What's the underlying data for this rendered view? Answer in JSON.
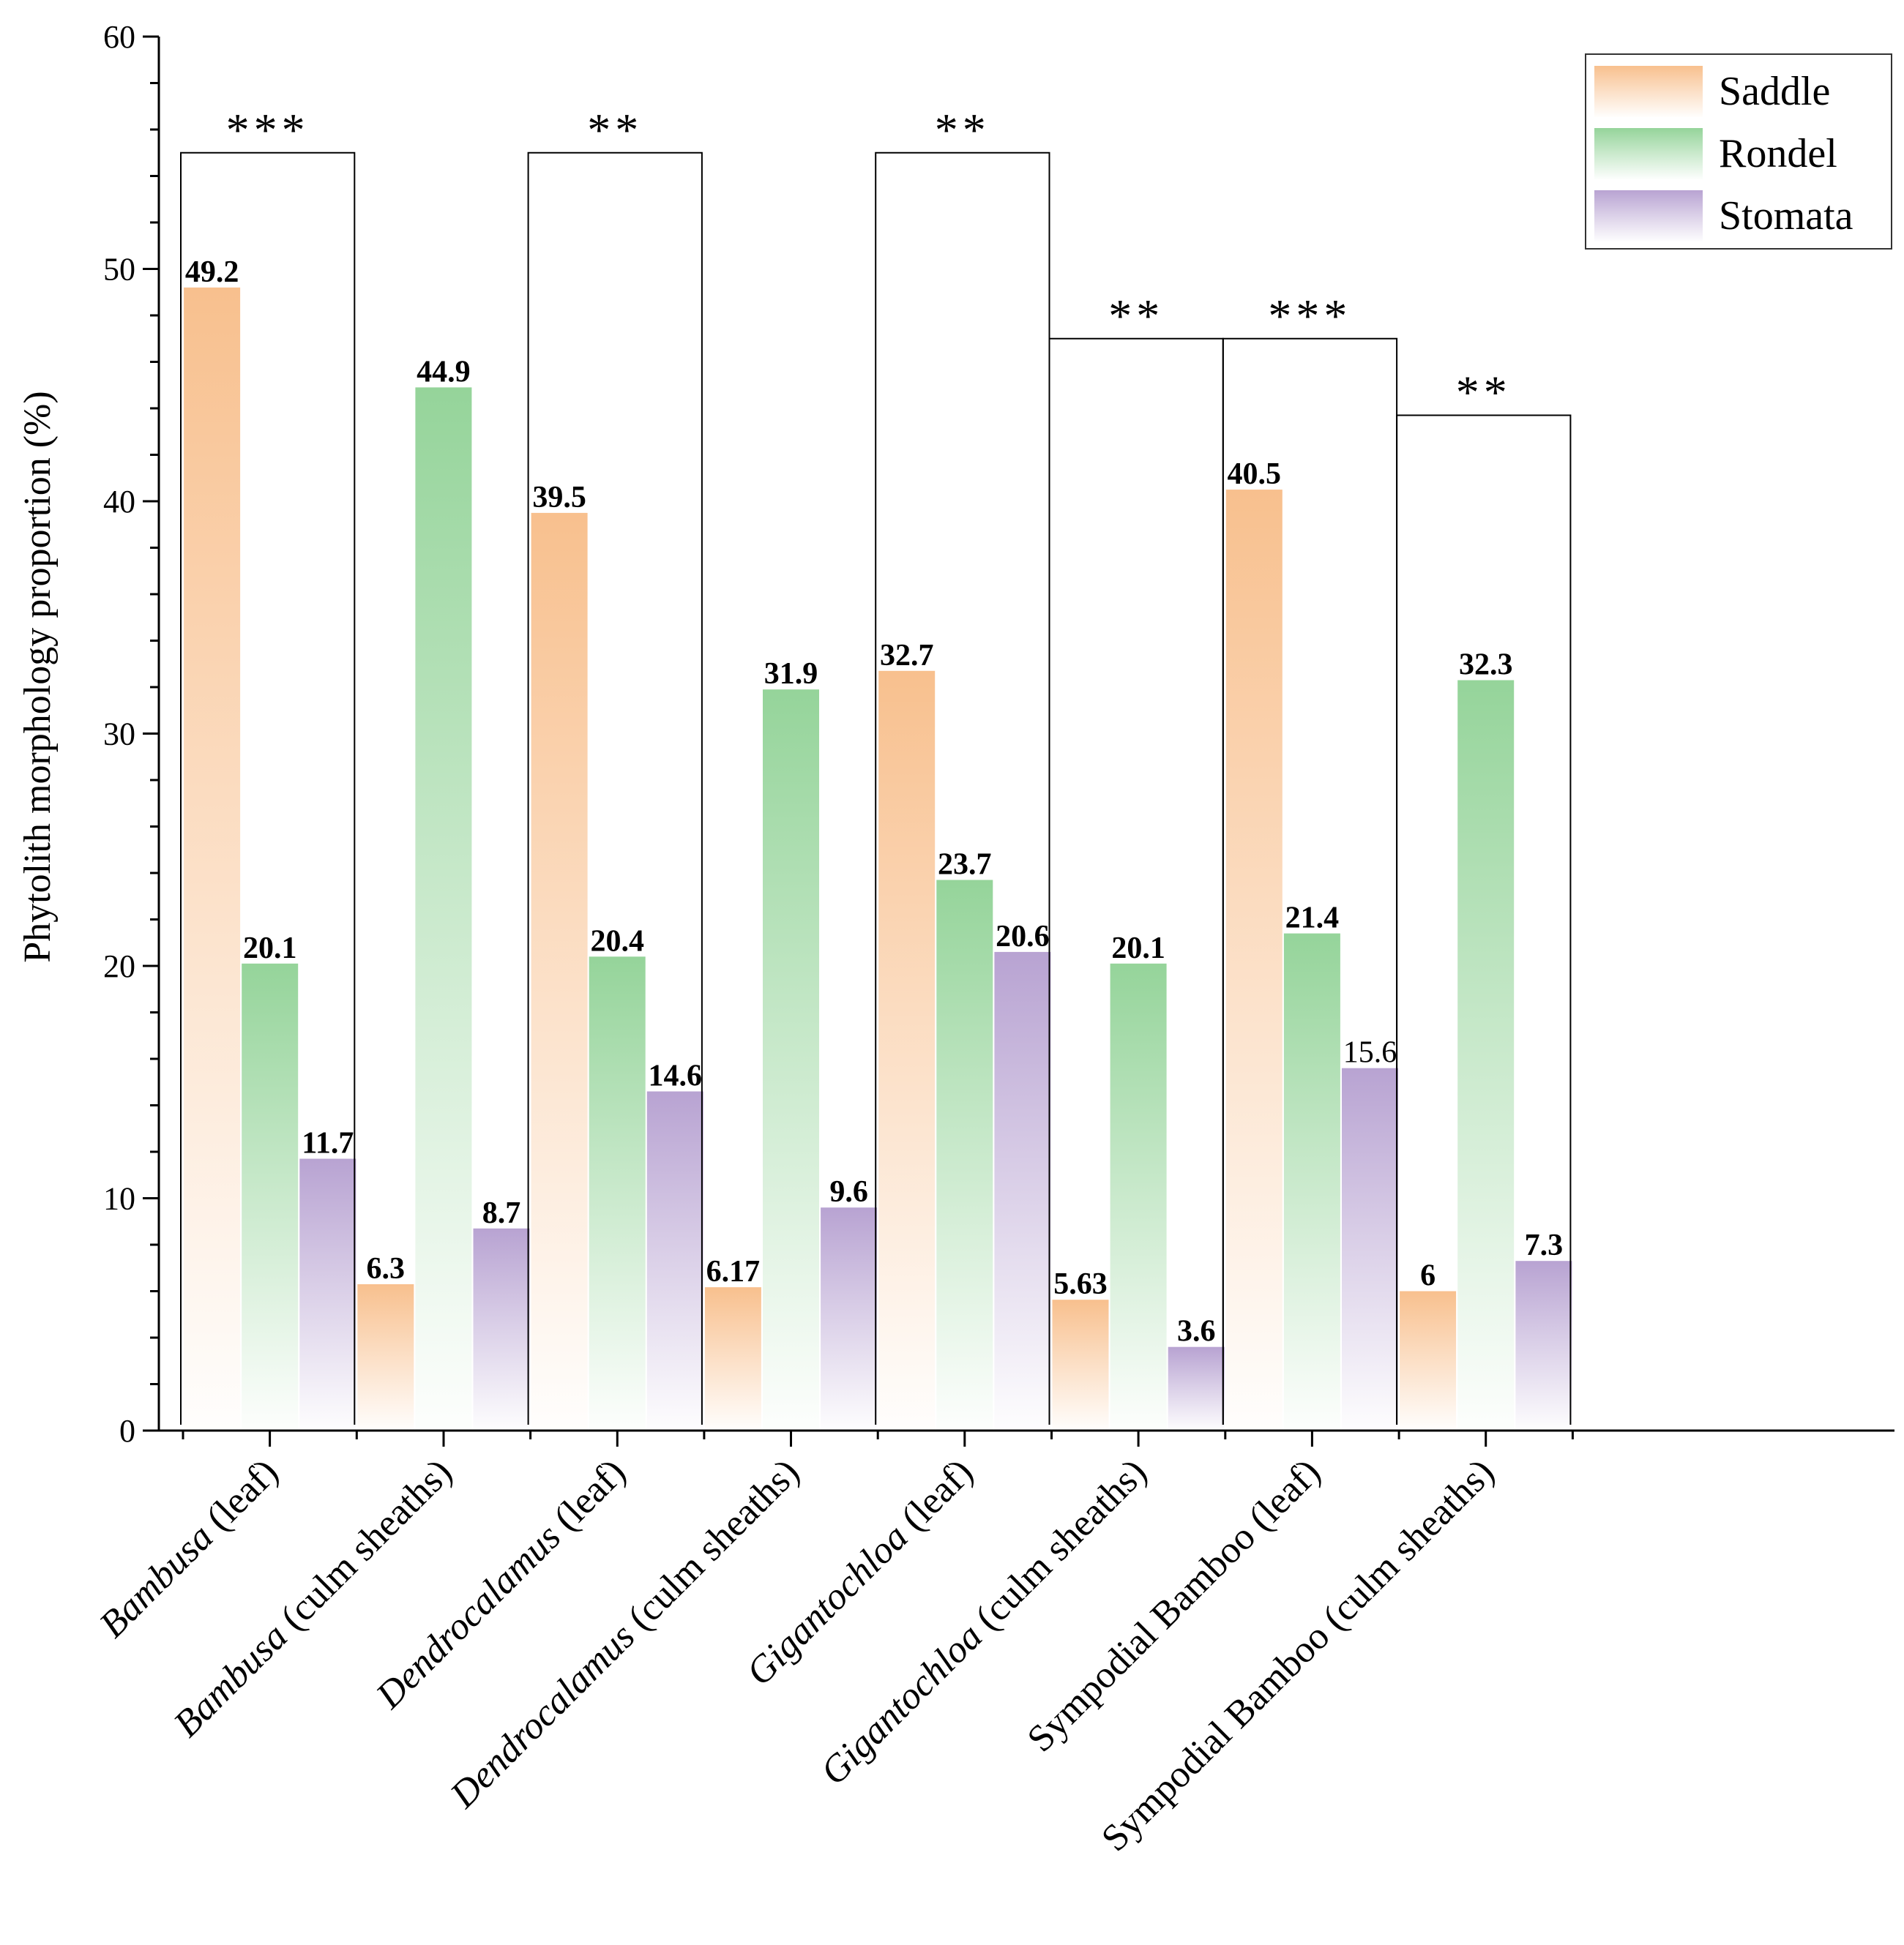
{
  "chart_data": {
    "type": "bar",
    "title": "",
    "xlabel": "",
    "ylabel": "Phytolith morphology proportion (%)",
    "ylim": [
      0,
      60
    ],
    "yticks": [
      0,
      10,
      20,
      30,
      40,
      50,
      60
    ],
    "grid": false,
    "legend_position": "top-right",
    "categories": [
      {
        "italic": "Bambusa",
        "rest": " (leaf)"
      },
      {
        "italic": "Bambusa",
        "rest": " (culm sheaths)"
      },
      {
        "italic": "Dendrocalamus",
        "rest": " (leaf)"
      },
      {
        "italic": "Dendrocalamus",
        "rest": " (culm sheaths)"
      },
      {
        "italic": "Gigantochloa",
        "rest": " (leaf)"
      },
      {
        "italic": "Gigantochloa",
        "rest": " (culm sheaths)"
      },
      {
        "italic": "",
        "rest": "Sympodial Bamboo (leaf)"
      },
      {
        "italic": "",
        "rest": "Sympodial Bamboo (culm sheaths)"
      }
    ],
    "series": [
      {
        "name": "Saddle",
        "color": "#f8c08e",
        "values": [
          49.2,
          6.3,
          39.5,
          6.17,
          32.7,
          5.63,
          40.5,
          6
        ],
        "labels": [
          "49.2",
          "6.3",
          "39.5",
          "6.17",
          "32.7",
          "5.63",
          "40.5",
          "6"
        ]
      },
      {
        "name": "Rondel",
        "color": "#95d49a",
        "values": [
          20.1,
          44.9,
          20.4,
          31.9,
          23.7,
          20.1,
          21.4,
          32.3
        ],
        "labels": [
          "20.1",
          "44.9",
          "20.4",
          "31.9",
          "23.7",
          "20.1",
          "21.4",
          "32.3"
        ]
      },
      {
        "name": "Stomata",
        "color": "#b8a3d2",
        "values": [
          11.7,
          8.7,
          14.6,
          9.6,
          20.6,
          3.6,
          15.6,
          7.3
        ],
        "labels": [
          "11.7",
          "8.7",
          "14.6",
          "9.6",
          "20.6",
          "3.6",
          "15.6",
          "7.3"
        ],
        "plain_labels": [
          6
        ]
      }
    ],
    "significance": [
      {
        "from": 0,
        "to": 1,
        "level": 55,
        "label": "***"
      },
      {
        "from": 2,
        "to": 3,
        "level": 55,
        "label": "**"
      },
      {
        "from": 4,
        "to": 5,
        "level": 55,
        "label": "**"
      },
      {
        "from": 5,
        "to": 6,
        "level": 47,
        "label": "**"
      },
      {
        "from": 6,
        "to": 7,
        "level": 47,
        "label": "***"
      },
      {
        "from": 7,
        "to": 8,
        "level": 43.7,
        "label": "**"
      }
    ]
  }
}
